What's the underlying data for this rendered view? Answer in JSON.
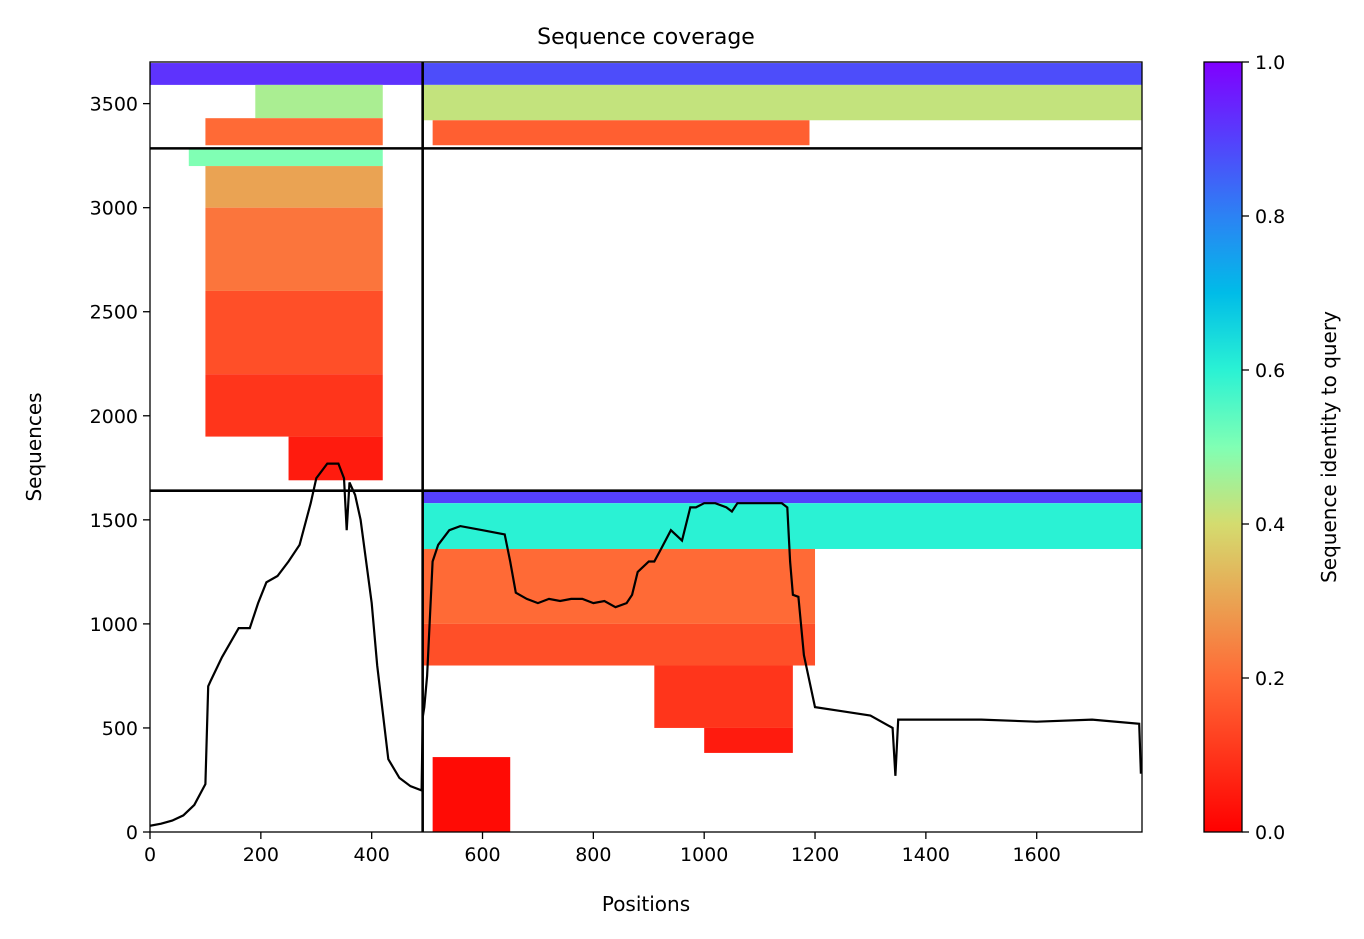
{
  "chart_data": {
    "type": "heatmap",
    "title": "Sequence coverage",
    "xlabel": "Positions",
    "ylabel": "Sequences",
    "xlim": [
      0,
      1790
    ],
    "ylim": [
      0,
      3700
    ],
    "xticks": [
      0,
      200,
      400,
      600,
      800,
      1000,
      1200,
      1400,
      1600
    ],
    "yticks": [
      0,
      500,
      1000,
      1500,
      2000,
      2500,
      3000,
      3500
    ],
    "grid": false,
    "colorbar": {
      "label": "Sequence identity to query",
      "range": [
        0.0,
        1.0
      ],
      "ticks": [
        "0.0",
        "0.2",
        "0.4",
        "0.6",
        "0.8",
        "1.0"
      ],
      "colormap": "rainbow_r"
    },
    "chain_boundaries": {
      "x": [
        492
      ],
      "y": [
        1640,
        3285
      ]
    },
    "coverage_blocks": [
      {
        "x0": 0,
        "x1": 492,
        "y0": 3590,
        "y1": 3695,
        "identity": 0.92
      },
      {
        "x0": 190,
        "x1": 420,
        "y0": 3430,
        "y1": 3590,
        "identity": 0.45
      },
      {
        "x0": 100,
        "x1": 420,
        "y0": 3300,
        "y1": 3430,
        "identity": 0.2
      },
      {
        "x0": 492,
        "x1": 1790,
        "y0": 3590,
        "y1": 3695,
        "identity": 0.88
      },
      {
        "x0": 492,
        "x1": 1790,
        "y0": 3420,
        "y1": 3590,
        "identity": 0.42
      },
      {
        "x0": 510,
        "x1": 1190,
        "y0": 3300,
        "y1": 3420,
        "identity": 0.18
      },
      {
        "x0": 70,
        "x1": 420,
        "y0": 3200,
        "y1": 3285,
        "identity": 0.5
      },
      {
        "x0": 100,
        "x1": 420,
        "y0": 3000,
        "y1": 3200,
        "identity": 0.3
      },
      {
        "x0": 100,
        "x1": 420,
        "y0": 2600,
        "y1": 3000,
        "identity": 0.22
      },
      {
        "x0": 100,
        "x1": 420,
        "y0": 2200,
        "y1": 2600,
        "identity": 0.15
      },
      {
        "x0": 100,
        "x1": 420,
        "y0": 1900,
        "y1": 2200,
        "identity": 0.1
      },
      {
        "x0": 250,
        "x1": 420,
        "y0": 1690,
        "y1": 1900,
        "identity": 0.05
      },
      {
        "x0": 492,
        "x1": 1790,
        "y0": 1580,
        "y1": 1640,
        "identity": 0.9
      },
      {
        "x0": 492,
        "x1": 1790,
        "y0": 1360,
        "y1": 1580,
        "identity": 0.6
      },
      {
        "x0": 492,
        "x1": 1200,
        "y0": 1000,
        "y1": 1360,
        "identity": 0.2
      },
      {
        "x0": 492,
        "x1": 1200,
        "y0": 800,
        "y1": 1000,
        "identity": 0.15
      },
      {
        "x0": 910,
        "x1": 1160,
        "y0": 500,
        "y1": 800,
        "identity": 0.1
      },
      {
        "x0": 1000,
        "x1": 1160,
        "y0": 380,
        "y1": 500,
        "identity": 0.05
      },
      {
        "x0": 510,
        "x1": 650,
        "y0": 0,
        "y1": 360,
        "identity": 0.02
      }
    ],
    "coverage_line": {
      "x": [
        0,
        20,
        40,
        60,
        80,
        100,
        105,
        110,
        130,
        160,
        180,
        195,
        210,
        230,
        250,
        270,
        290,
        300,
        320,
        340,
        350,
        355,
        360,
        370,
        380,
        400,
        410,
        430,
        450,
        470,
        490,
        492,
        495,
        500,
        510,
        520,
        540,
        560,
        600,
        640,
        650,
        660,
        680,
        700,
        720,
        740,
        760,
        780,
        800,
        820,
        840,
        860,
        870,
        880,
        900,
        910,
        920,
        940,
        960,
        975,
        985,
        1000,
        1020,
        1040,
        1050,
        1060,
        1080,
        1100,
        1120,
        1140,
        1150,
        1155,
        1160,
        1170,
        1180,
        1200,
        1250,
        1300,
        1340,
        1345,
        1350,
        1400,
        1500,
        1600,
        1700,
        1785,
        1788
      ],
      "y": [
        30,
        40,
        55,
        80,
        130,
        230,
        700,
        730,
        840,
        980,
        980,
        1100,
        1200,
        1230,
        1300,
        1380,
        1580,
        1700,
        1770,
        1770,
        1700,
        1450,
        1680,
        1620,
        1500,
        1100,
        800,
        350,
        260,
        220,
        200,
        550,
        600,
        750,
        1300,
        1380,
        1450,
        1470,
        1450,
        1430,
        1300,
        1150,
        1120,
        1100,
        1120,
        1110,
        1120,
        1120,
        1100,
        1110,
        1080,
        1100,
        1140,
        1250,
        1300,
        1300,
        1350,
        1450,
        1400,
        1560,
        1560,
        1580,
        1580,
        1560,
        1540,
        1580,
        1580,
        1580,
        1580,
        1580,
        1560,
        1300,
        1140,
        1130,
        850,
        600,
        580,
        560,
        500,
        270,
        540,
        540,
        540,
        530,
        540,
        520,
        280
      ]
    }
  }
}
